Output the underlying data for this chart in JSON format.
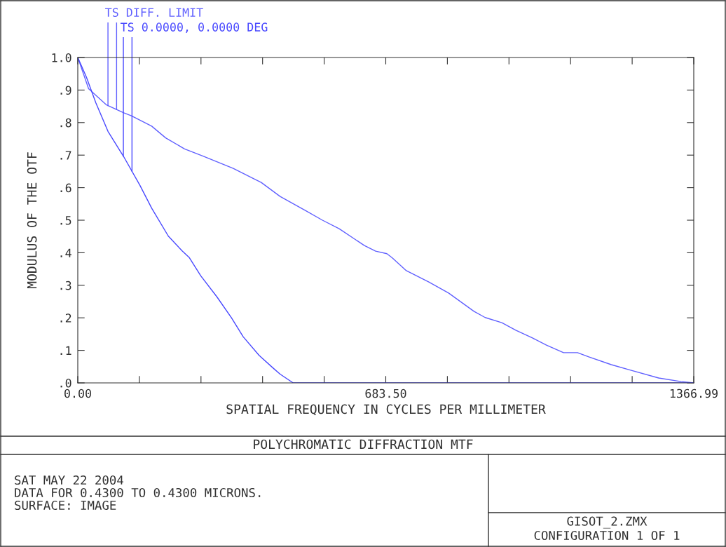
{
  "chart_data": {
    "type": "line",
    "title": "POLYCHROMATIC DIFFRACTION MTF",
    "xlabel": "SPATIAL FREQUENCY IN CYCLES PER MILLIMETER",
    "ylabel": "MODULUS OF THE OTF",
    "annotations": [
      "SAT MAY 22 2004",
      "DATA FOR 0.4300 TO 0.4300 MICRONS.",
      "SURFACE: IMAGE",
      "GISOT_2.ZMX",
      "CONFIGURATION 1 OF 1"
    ],
    "series": [
      {
        "name": "TS DIFF. LIMIT",
        "color": "#6060ff",
        "x": [
          0,
          24,
          63,
          102,
          119,
          164,
          195,
          237,
          278,
          345,
          407,
          449,
          505,
          543,
          580,
          636,
          661,
          686,
          698,
          729,
          779,
          823,
          879,
          904,
          941,
          972,
          1009,
          1040,
          1078,
          1109,
          1134,
          1184,
          1227,
          1289,
          1339,
          1366.99
        ],
        "values": [
          1.0,
          0.904,
          0.855,
          0.83,
          0.821,
          0.789,
          0.753,
          0.719,
          0.697,
          0.659,
          0.616,
          0.573,
          0.53,
          0.5,
          0.474,
          0.422,
          0.405,
          0.397,
          0.384,
          0.345,
          0.31,
          0.276,
          0.22,
          0.201,
          0.185,
          0.162,
          0.138,
          0.116,
          0.093,
          0.093,
          0.08,
          0.056,
          0.039,
          0.015,
          0.004,
          0.0
        ]
      },
      {
        "name": "TS 0.0000, 0.0000 DEG",
        "color": "#4848ff",
        "x": [
          0,
          19,
          40,
          67,
          102,
          138,
          164,
          201,
          232,
          247,
          273,
          309,
          341,
          367,
          402,
          434,
          449,
          478,
          1366.99
        ],
        "values": [
          1.0,
          0.94,
          0.861,
          0.773,
          0.695,
          0.607,
          0.537,
          0.451,
          0.405,
          0.386,
          0.329,
          0.264,
          0.2,
          0.142,
          0.085,
          0.045,
          0.027,
          0.0,
          0.0
        ]
      }
    ],
    "xlim": [
      0,
      1366.99
    ],
    "ylim": [
      0,
      1.0
    ],
    "xticks": [
      {
        "value": 0,
        "label": "0.00"
      },
      {
        "value": 136.7,
        "label": null
      },
      {
        "value": 273.4,
        "label": null
      },
      {
        "value": 410.1,
        "label": null
      },
      {
        "value": 546.8,
        "label": null
      },
      {
        "value": 683.5,
        "label": "683.50"
      },
      {
        "value": 820.19,
        "label": null
      },
      {
        "value": 956.89,
        "label": null
      },
      {
        "value": 1093.59,
        "label": null
      },
      {
        "value": 1230.29,
        "label": null
      },
      {
        "value": 1366.99,
        "label": "1366.99"
      }
    ],
    "yticks": [
      {
        "value": 0,
        "label": ".0"
      },
      {
        "value": 0.1,
        "label": ".1"
      },
      {
        "value": 0.2,
        "label": ".2"
      },
      {
        "value": 0.3,
        "label": ".3"
      },
      {
        "value": 0.4,
        "label": ".4"
      },
      {
        "value": 0.5,
        "label": ".5"
      },
      {
        "value": 0.6,
        "label": ".6"
      },
      {
        "value": 0.7,
        "label": ".7"
      },
      {
        "value": 0.8,
        "label": ".8"
      },
      {
        "value": 0.9,
        "label": ".9"
      },
      {
        "value": 1.0,
        "label": "1.0"
      }
    ],
    "grid": false,
    "legend": "top left"
  }
}
